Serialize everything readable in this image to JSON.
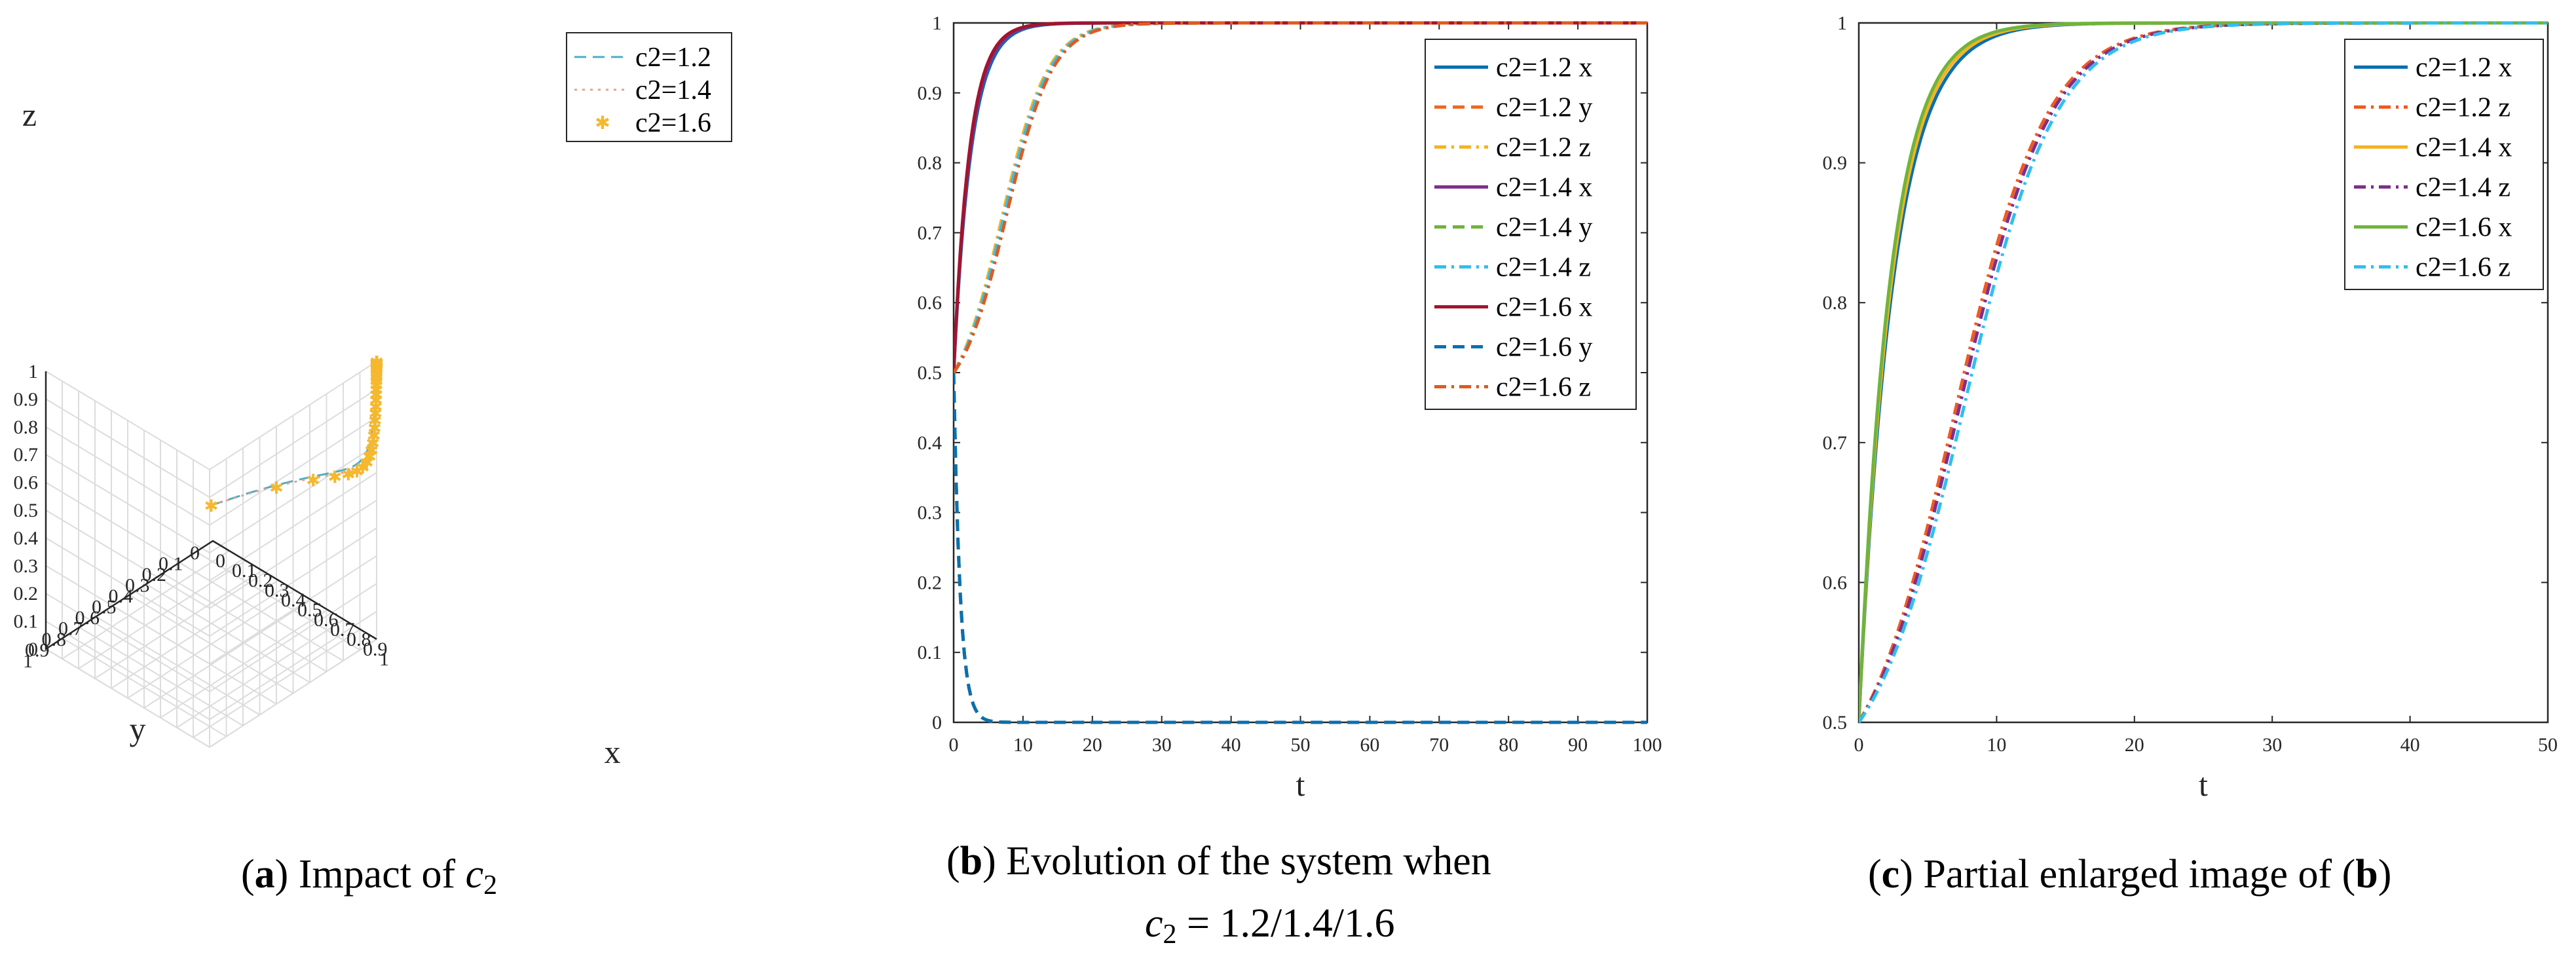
{
  "chart_data": [
    {
      "id": "a",
      "type": "line3d",
      "title": "",
      "xlabel": "x",
      "ylabel": "y",
      "zlabel": "z",
      "xlim": [
        0,
        1
      ],
      "ylim": [
        0,
        1
      ],
      "zlim": [
        0,
        1
      ],
      "xticks": [
        "0",
        "0.1",
        "0.2",
        "0.3",
        "0.4",
        "0.5",
        "0.6",
        "0.7",
        "0.8",
        "0.9",
        "1"
      ],
      "yticks": [
        "0",
        "0.1",
        "0.2",
        "0.3",
        "0.4",
        "0.5",
        "0.6",
        "0.7",
        "0.8",
        "0.9",
        "1"
      ],
      "zticks": [
        "0",
        "0.1",
        "0.2",
        "0.3",
        "0.4",
        "0.5",
        "0.6",
        "0.7",
        "0.8",
        "0.9",
        "1"
      ],
      "grid": true,
      "legend_position": "top-right",
      "series": [
        {
          "name": "c2=1.2",
          "color": "#4daec4",
          "style": "dashed"
        },
        {
          "name": "c2=1.4",
          "color": "#e6a08f",
          "style": "dotted"
        },
        {
          "name": "c2=1.6",
          "color": "#f5b82e",
          "style": "markers"
        }
      ],
      "caption": {
        "label": "a",
        "text": "Impact of ",
        "symbol": "c",
        "subscript": "2"
      }
    },
    {
      "id": "b",
      "type": "line",
      "xlabel": "t",
      "ylabel": "",
      "xlim": [
        0,
        100
      ],
      "ylim": [
        0,
        1
      ],
      "xticks": [
        "0",
        "10",
        "20",
        "30",
        "40",
        "50",
        "60",
        "70",
        "80",
        "90",
        "100"
      ],
      "yticks": [
        "0",
        "0.1",
        "0.2",
        "0.3",
        "0.4",
        "0.5",
        "0.6",
        "0.7",
        "0.8",
        "0.9",
        "1"
      ],
      "grid": false,
      "legend_position": "top-right",
      "series": [
        {
          "name": "c2=1.2 x",
          "color": "#0a6fb1",
          "style": "solid"
        },
        {
          "name": "c2=1.2 y",
          "color": "#ef6a26",
          "style": "dashed"
        },
        {
          "name": "c2=1.2 z",
          "color": "#f5b320",
          "style": "dashdot"
        },
        {
          "name": "c2=1.4 x",
          "color": "#7e2f8e",
          "style": "solid"
        },
        {
          "name": "c2=1.4 y",
          "color": "#6fb43a",
          "style": "dashed"
        },
        {
          "name": "c2=1.4 z",
          "color": "#2fbfef",
          "style": "dashdot"
        },
        {
          "name": "c2=1.6 x",
          "color": "#a2142f",
          "style": "solid"
        },
        {
          "name": "c2=1.6 y",
          "color": "#0a6fb1",
          "style": "dashed"
        },
        {
          "name": "c2=1.6 z",
          "color": "#e05a20",
          "style": "dashdot"
        }
      ],
      "caption": {
        "label": "b",
        "line1": "Evolution of the system when",
        "symbol": "c",
        "subscript": "2",
        "line2": " = 1.2/1.4/1.6"
      }
    },
    {
      "id": "c",
      "type": "line",
      "xlabel": "t",
      "ylabel": "",
      "xlim": [
        0,
        50
      ],
      "ylim": [
        0.5,
        1
      ],
      "xticks": [
        "0",
        "10",
        "20",
        "30",
        "40",
        "50"
      ],
      "yticks": [
        "0.5",
        "0.6",
        "0.7",
        "0.8",
        "0.9",
        "1"
      ],
      "grid": false,
      "legend_position": "top-right",
      "series": [
        {
          "name": "c2=1.2 x",
          "color": "#0a6fb1",
          "style": "solid"
        },
        {
          "name": "c2=1.2 z",
          "color": "#ef5a20",
          "style": "dashdot"
        },
        {
          "name": "c2=1.4 x",
          "color": "#f5b320",
          "style": "solid"
        },
        {
          "name": "c2=1.4 z",
          "color": "#7e2f8e",
          "style": "dashdot"
        },
        {
          "name": "c2=1.6 x",
          "color": "#6fb43a",
          "style": "solid"
        },
        {
          "name": "c2=1.6 z",
          "color": "#2fbfef",
          "style": "dashdot"
        }
      ],
      "caption": {
        "label": "c",
        "text1": "Partial enlarged image of (",
        "ref": "b",
        "text2": ")"
      }
    }
  ]
}
